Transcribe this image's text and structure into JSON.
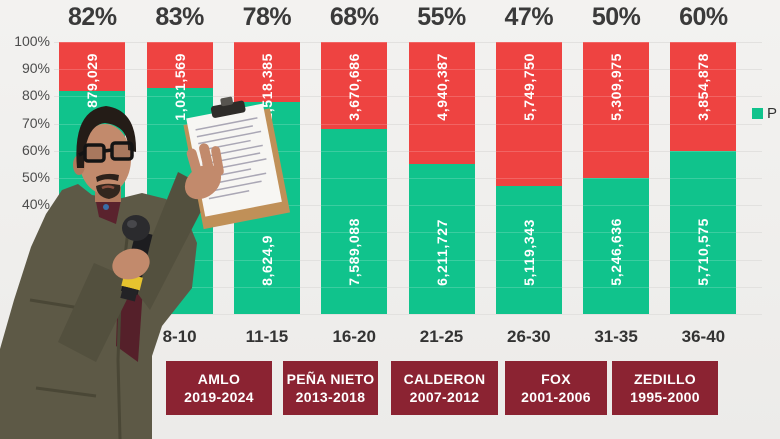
{
  "chart_data": {
    "type": "bar",
    "stacked": true,
    "orientation": "vertical",
    "title": "",
    "categories": [
      "",
      "8-10",
      "11-15",
      "16-20",
      "21-25",
      "26-30",
      "31-35",
      "36-40"
    ],
    "top_percentage_labels": [
      "82%",
      "83%",
      "78%",
      "68%",
      "55%",
      "47%",
      "50%",
      "60%"
    ],
    "series": [
      {
        "name": "P (legend label truncated at image edge)",
        "color": "#10c38c",
        "position": "bottom",
        "share_pct": [
          82,
          83,
          78,
          68,
          55,
          47,
          50,
          60
        ],
        "value_labels": [
          "",
          "5,3",
          "8,624,9",
          "7,589,088",
          "6,211,727",
          "5,119,343",
          "5,246,636",
          "5,710,575"
        ]
      },
      {
        "name": "red (unlabeled)",
        "color": "#ee4341",
        "position": "top",
        "share_pct": [
          18,
          17,
          22,
          32,
          45,
          53,
          50,
          40
        ],
        "value_labels": [
          "879,029",
          "1,031,569",
          "2,518,385",
          "3,670,686",
          "4,940,387",
          "5,749,750",
          "5,309,975",
          "3,854,878"
        ]
      }
    ],
    "y_axis": {
      "range": [
        0,
        100
      ],
      "unit": "%",
      "ticks": [
        {
          "label": "100%",
          "value": 100
        },
        {
          "label": "90%",
          "value": 90
        },
        {
          "label": "80%",
          "value": 80
        },
        {
          "label": "70%",
          "value": 70
        },
        {
          "label": "60%",
          "value": 60
        },
        {
          "label": "50%",
          "value": 50
        },
        {
          "label": "40%",
          "value": 40
        },
        {
          "label": "1",
          "value": 10
        }
      ]
    },
    "legend": {
      "position": "right",
      "entries": [
        {
          "label": "P",
          "color": "#10c38c",
          "truncated": true
        }
      ]
    },
    "grid": true,
    "notes": "Some labels partially occluded by presenter: first category label, first green value, and green values '5,3…' and '8,624,9…' are cut off by his arm/clipboard; y ticks 30%, 20%, 0% hidden; '1' is the visible part of 10%."
  },
  "presidents": [
    {
      "name": "AMLO",
      "years": "2019-2024"
    },
    {
      "name": "PEÑA NIETO",
      "years": "2013-2018"
    },
    {
      "name": "CALDERON",
      "years": "2007-2012"
    },
    {
      "name": "FOX",
      "years": "2001-2006"
    },
    {
      "name": "ZEDILLO",
      "years": "1995-2000"
    }
  ],
  "colors": {
    "green": "#10c38c",
    "red": "#ee4341",
    "president_box": "#8b2332",
    "background": "#f0efed",
    "text_dark": "#3a3a3a"
  }
}
